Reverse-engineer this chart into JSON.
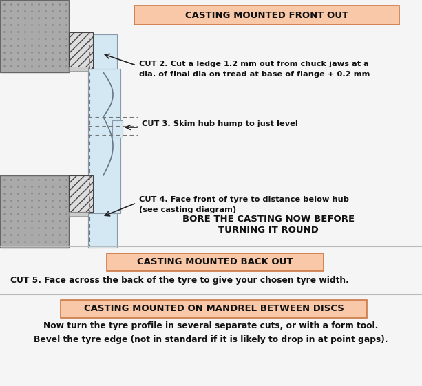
{
  "panel_bg": "#f5f5f5",
  "header_bg": "#f9c8a8",
  "header_border": "#cc7744",
  "header1_text": "CASTING MOUNTED FRONT OUT",
  "header2_text": "CASTING MOUNTED BACK OUT",
  "header3_text": "CASTING MOUNTED ON MANDREL BETWEEN DISCS",
  "cut2_line1": "CUT 2. Cut a ledge 1.2 mm out from chuck jaws at a",
  "cut2_line2": "dia. of final dia on tread at base of flange + 0.2 mm",
  "cut3_text": "CUT 3. Skim hub hump to just level",
  "cut4_line1": "CUT 4. Face front of tyre to distance below hub",
  "cut4_line2": "(see casting diagram)",
  "bore_line1": "BORE THE CASTING NOW BEFORE",
  "bore_line2": "TURNING IT ROUND",
  "cut5_text": "CUT 5. Face across the back of the tyre to give your chosen tyre width.",
  "mandrel_line1": "Now turn the tyre profile in several separate cuts, or with a form tool.",
  "mandrel_line2": "Bevel the tyre edge (not in standard if it is likely to drop in at point gaps).",
  "chuck_gray": "#aaaaaa",
  "chuck_dot": "#888888",
  "hatch_bg": "#dddddd",
  "wheel_fill": "#d4e8f4",
  "wheel_edge": "#8899aa",
  "dashed_color": "#777777",
  "arrow_color": "#222222",
  "div_color": "#bbbbbb",
  "text_color": "#111111"
}
